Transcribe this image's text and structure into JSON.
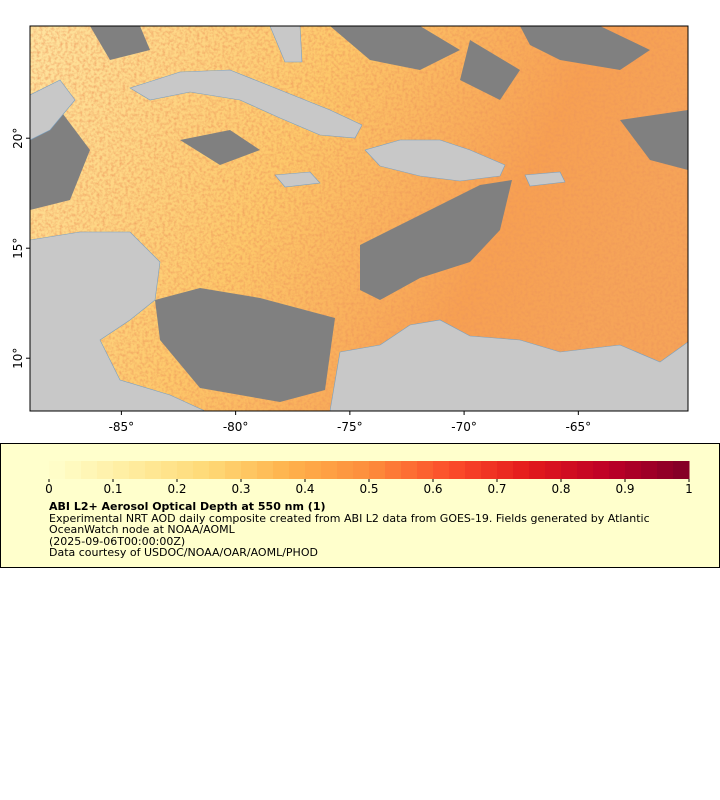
{
  "chart_data": {
    "type": "map",
    "xlim": [
      -89,
      -60.2
    ],
    "ylim": [
      7.6,
      25.1
    ],
    "xticks": [
      {
        "value": -85,
        "label": "-85°"
      },
      {
        "value": -80,
        "label": "-80°"
      },
      {
        "value": -75,
        "label": "-75°"
      },
      {
        "value": -70,
        "label": "-70°"
      },
      {
        "value": -65,
        "label": "-65°"
      }
    ],
    "yticks": [
      {
        "value": 10,
        "label": "10°"
      },
      {
        "value": 15,
        "label": "15°"
      },
      {
        "value": 20,
        "label": "20°"
      }
    ],
    "colorbar": {
      "lim": [
        0,
        1
      ],
      "ticks": [
        0,
        0.1,
        0.2,
        0.3,
        0.4,
        0.5,
        0.6,
        0.7,
        0.8,
        0.9,
        1
      ],
      "levels": 40,
      "colors": [
        "#ffffcc",
        "#ffeda0",
        "#fed976",
        "#feb24c",
        "#fd8d3c",
        "#fc4e2a",
        "#e31a1c",
        "#bd0026",
        "#800026"
      ]
    },
    "title": "ABI L2+ Aerosol Optical Depth at 550 nm (1)",
    "description": "Experimental NRT AOD daily composite created from ABI L2 data from GOES-19. Fields generated by Atlantic OceanWatch node at NOAA/AOML",
    "time": "(2025-09-06T00:00:00Z)",
    "credit": "Data courtesy of USDOC/NOAA/OAR/AOML/PHOD"
  }
}
